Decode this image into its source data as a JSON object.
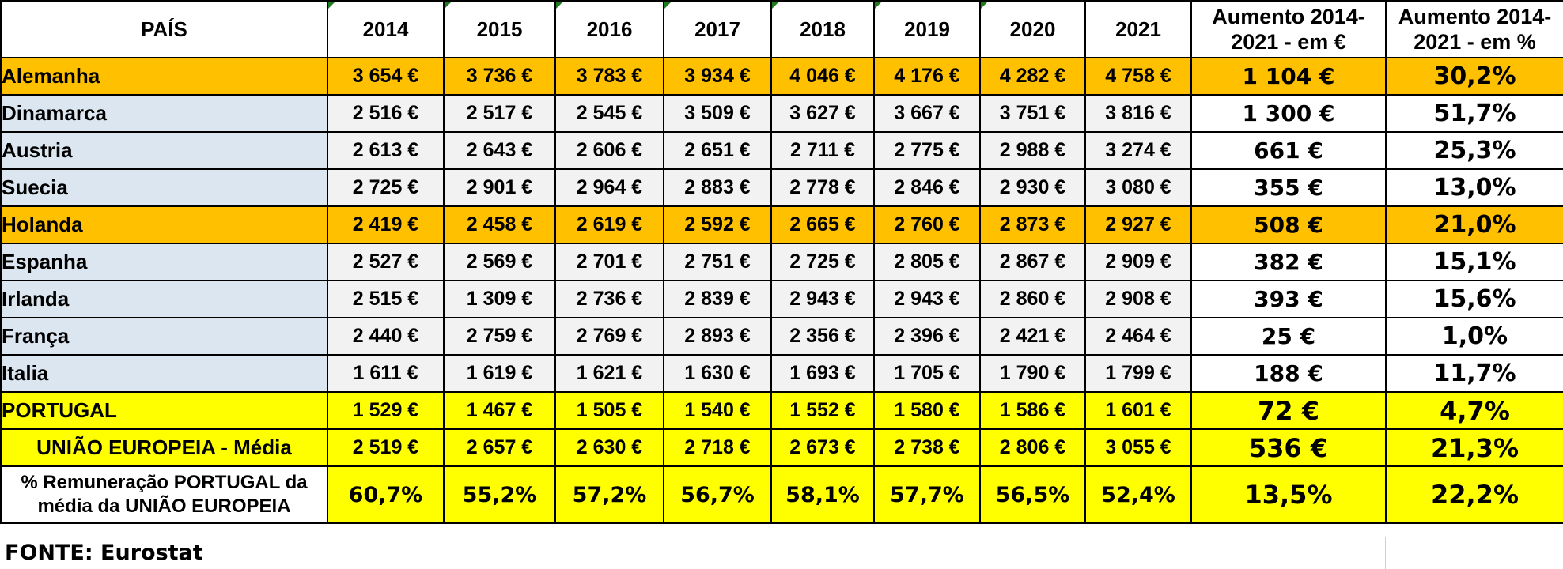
{
  "header": {
    "country": "PAÍS",
    "years": [
      "2014",
      "2015",
      "2016",
      "2017",
      "2018",
      "2019",
      "2020",
      "2021"
    ],
    "increase_eur": "Aumento 2014-2021 - em €",
    "increase_pct": "Aumento 2014-2021 - em %"
  },
  "rows": [
    {
      "country": "Alemanha",
      "values": [
        "3 654 €",
        "3 736 €",
        "3 783 €",
        "3 934 €",
        "4 046 €",
        "4 176 €",
        "4 282 €",
        "4 758 €"
      ],
      "inc": "1 104 €",
      "pct": "30,2%"
    },
    {
      "country": "Dinamarca",
      "values": [
        "2 516 €",
        "2 517 €",
        "2 545 €",
        "3 509 €",
        "3 627 €",
        "3 667 €",
        "3 751 €",
        "3 816 €"
      ],
      "inc": "1 300 €",
      "pct": "51,7%"
    },
    {
      "country": "Austria",
      "values": [
        "2 613 €",
        "2 643 €",
        "2 606 €",
        "2 651 €",
        "2 711 €",
        "2 775 €",
        "2 988 €",
        "3 274 €"
      ],
      "inc": "661 €",
      "pct": "25,3%"
    },
    {
      "country": "Suecia",
      "values": [
        "2 725 €",
        "2 901 €",
        "2 964 €",
        "2 883 €",
        "2 778 €",
        "2 846 €",
        "2 930 €",
        "3 080 €"
      ],
      "inc": "355 €",
      "pct": "13,0%"
    },
    {
      "country": "Holanda",
      "values": [
        "2 419 €",
        "2 458 €",
        "2 619 €",
        "2 592 €",
        "2 665 €",
        "2 760 €",
        "2 873 €",
        "2 927 €"
      ],
      "inc": "508 €",
      "pct": "21,0%"
    },
    {
      "country": "Espanha",
      "values": [
        "2 527 €",
        "2 569 €",
        "2 701 €",
        "2 751 €",
        "2 725 €",
        "2 805 €",
        "2 867 €",
        "2 909 €"
      ],
      "inc": "382 €",
      "pct": "15,1%"
    },
    {
      "country": "Irlanda",
      "values": [
        "2 515 €",
        "1 309 €",
        "2 736 €",
        "2 839 €",
        "2 943 €",
        "2 943 €",
        "2 860 €",
        "2 908 €"
      ],
      "inc": "393 €",
      "pct": "15,6%"
    },
    {
      "country": "França",
      "values": [
        "2 440 €",
        "2 759 €",
        "2 769 €",
        "2 893 €",
        "2 356 €",
        "2 396 €",
        "2 421 €",
        "2 464 €"
      ],
      "inc": "25 €",
      "pct": "1,0%"
    },
    {
      "country": "Italia",
      "values": [
        "1 611 €",
        "1 619 €",
        "1 621 €",
        "1 630 €",
        "1 693 €",
        "1 705 €",
        "1 790 €",
        "1 799 €"
      ],
      "inc": "188 €",
      "pct": "11,7%"
    },
    {
      "country": "PORTUGAL",
      "values": [
        "1 529 €",
        "1 467 €",
        "1 505 €",
        "1 540 €",
        "1 552 €",
        "1 580 €",
        "1 586 €",
        "1 601 €"
      ],
      "inc": "72 €",
      "pct": "4,7%"
    },
    {
      "country": "UNIÃO EUROPEIA - Média",
      "values": [
        "2 519 €",
        "2 657 €",
        "2 630 €",
        "2 718 €",
        "2 673 €",
        "2 738 €",
        "2 806 €",
        "3 055 €"
      ],
      "inc": "536 €",
      "pct": "21,3%"
    },
    {
      "country": "% Remuneração PORTUGAL da média da UNIÃO EUROPEIA",
      "values": [
        "60,7%",
        "55,2%",
        "57,2%",
        "56,7%",
        "58,1%",
        "57,7%",
        "56,5%",
        "52,4%"
      ],
      "inc": "13,5%",
      "pct": "22,2%"
    }
  ],
  "source": "FONTE: Eurostat",
  "colors": {
    "highlight_orange": "#ffc000",
    "highlight_yellow": "#ffff00",
    "country_bg": "#dce6f1",
    "cell_bg": "#f2f2f2"
  }
}
